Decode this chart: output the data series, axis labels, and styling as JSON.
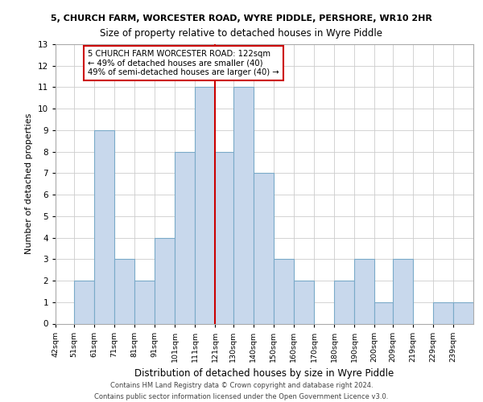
{
  "title": "5, CHURCH FARM, WORCESTER ROAD, WYRE PIDDLE, PERSHORE, WR10 2HR",
  "subtitle": "Size of property relative to detached houses in Wyre Piddle",
  "xlabel": "Distribution of detached houses by size in Wyre Piddle",
  "ylabel": "Number of detached properties",
  "bar_color": "#c8d8ec",
  "bar_edge_color": "#7aaac8",
  "grid_color": "#cccccc",
  "vline_color": "#cc0000",
  "vline_x": 121,
  "annotation_line1": "5 CHURCH FARM WORCESTER ROAD: 122sqm",
  "annotation_line2": "← 49% of detached houses are smaller (40)",
  "annotation_line3": "49% of semi-detached houses are larger (40) →",
  "annotation_box_color": "#ffffff",
  "annotation_box_edge": "#cc0000",
  "bins": [
    42,
    51,
    61,
    71,
    81,
    91,
    101,
    111,
    121,
    130,
    140,
    150,
    160,
    170,
    180,
    190,
    200,
    209,
    219,
    229,
    239
  ],
  "bin_labels": [
    "42sqm",
    "51sqm",
    "61sqm",
    "71sqm",
    "81sqm",
    "91sqm",
    "101sqm",
    "111sqm",
    "121sqm",
    "130sqm",
    "140sqm",
    "150sqm",
    "160sqm",
    "170sqm",
    "180sqm",
    "190sqm",
    "200sqm",
    "209sqm",
    "219sqm",
    "229sqm",
    "239sqm"
  ],
  "counts": [
    0,
    2,
    9,
    3,
    2,
    4,
    8,
    11,
    8,
    11,
    7,
    3,
    2,
    0,
    2,
    3,
    1,
    3,
    0,
    1,
    1
  ],
  "ylim": [
    0,
    13
  ],
  "yticks": [
    0,
    1,
    2,
    3,
    4,
    5,
    6,
    7,
    8,
    9,
    10,
    11,
    12,
    13
  ],
  "footer_line1": "Contains HM Land Registry data © Crown copyright and database right 2024.",
  "footer_line2": "Contains public sector information licensed under the Open Government Licence v3.0."
}
